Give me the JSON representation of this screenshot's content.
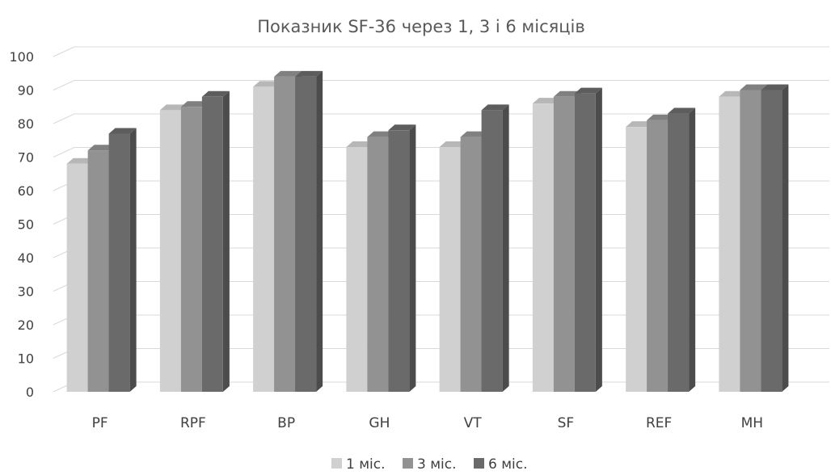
{
  "chart_data": {
    "type": "bar",
    "title": "Показник SF-36 через 1, 3 і 6 місяців",
    "categories": [
      "PF",
      "RPF",
      "BP",
      "GH",
      "VT",
      "SF",
      "REF",
      "MH"
    ],
    "series": [
      {
        "name": "1 міс.",
        "color": "#d0d0d0",
        "values": [
          68,
          84,
          91,
          73,
          73,
          86,
          79,
          88
        ]
      },
      {
        "name": "3 міс.",
        "color": "#929292",
        "values": [
          72,
          85,
          94,
          76,
          76,
          88,
          81,
          90
        ]
      },
      {
        "name": "6 міс.",
        "color": "#6a6a6a",
        "values": [
          77,
          88,
          94,
          78,
          84,
          89,
          83,
          90
        ]
      }
    ],
    "ylim": [
      0,
      100
    ],
    "yticks": [
      0,
      10,
      20,
      30,
      40,
      50,
      60,
      70,
      80,
      90,
      100
    ],
    "grid": true,
    "legend_position": "bottom"
  }
}
